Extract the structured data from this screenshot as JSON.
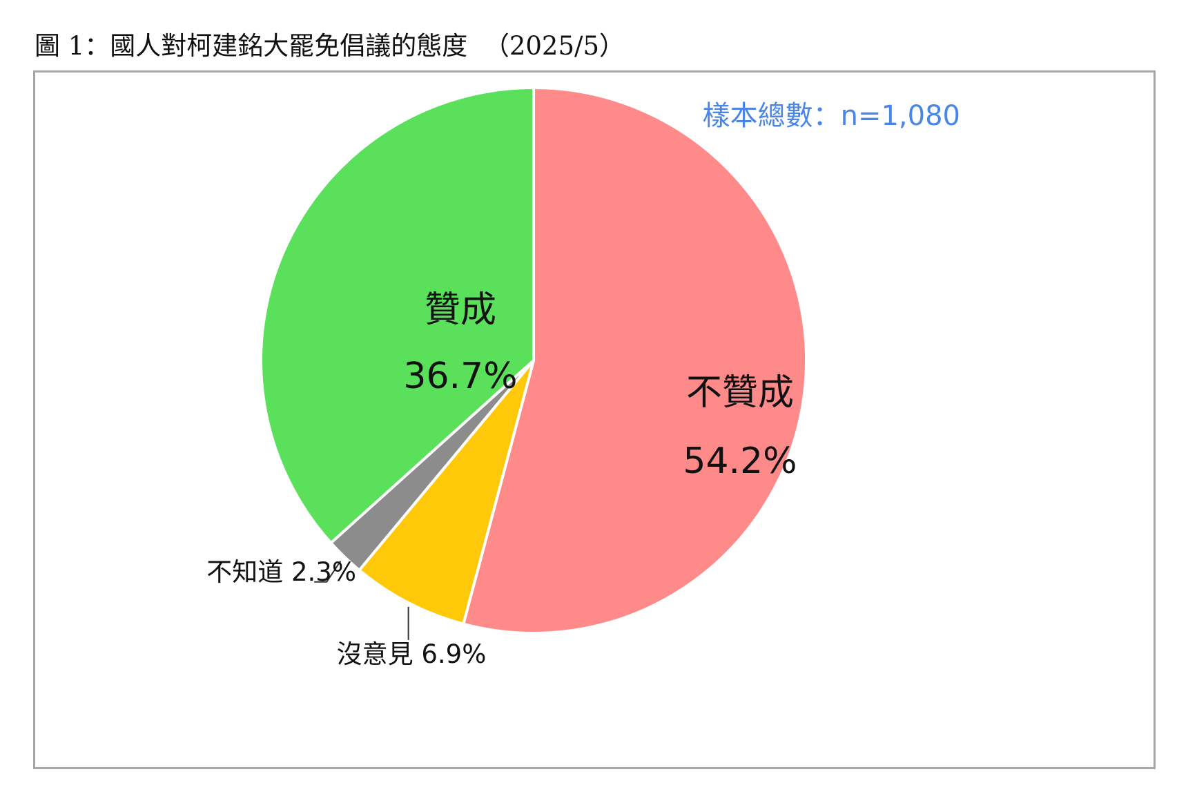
{
  "figure_title": "圖 1：國人對柯建銘大罷免倡議的態度  （2025/5）",
  "sample_note": "樣本總數：n=1,080",
  "chart_data": {
    "type": "pie",
    "title": "",
    "start": "12 o'clock, clockwise",
    "slices": [
      {
        "label": "不贊成",
        "value": 54.2,
        "value_label": "54.2%",
        "color": "#ff8a8a"
      },
      {
        "label": "沒意見",
        "value": 6.9,
        "value_label": "6.9%",
        "color": "#ffc90a"
      },
      {
        "label": "不知道",
        "value": 2.3,
        "value_label": "2.3%",
        "color": "#8c8c8c"
      },
      {
        "label": "贊成",
        "value": 36.7,
        "value_label": "36.7%",
        "color": "#5ae05a"
      }
    ]
  }
}
